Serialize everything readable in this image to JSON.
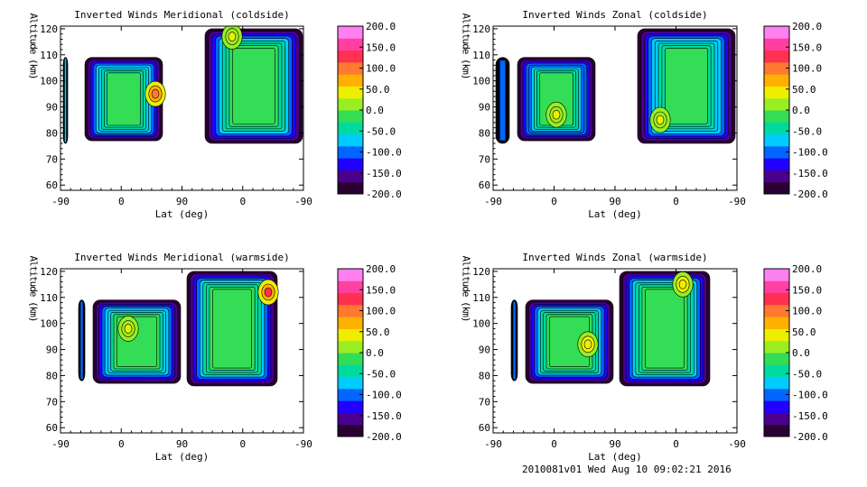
{
  "chart_data": [
    {
      "type": "heatmap",
      "title": "Inverted Winds Meridional (coldside)",
      "xlabel": "Lat (deg)",
      "ylabel": "Altitude (km)",
      "x_tick_labels": [
        "-90",
        "0",
        "90",
        "0",
        "-90"
      ],
      "y_tick_labels": [
        "60",
        "70",
        "80",
        "90",
        "100",
        "110",
        "120"
      ],
      "ylim": [
        58,
        121
      ],
      "colorbar_labels": [
        "200.0",
        "150.0",
        "100.0",
        "50.0",
        "0.0",
        "-50.0",
        "-100.0",
        "-150.0",
        "-200.0"
      ],
      "clim": [
        -200,
        200
      ],
      "regions": [
        {
          "x": [
            3,
            8
          ],
          "y": [
            76,
            109
          ],
          "edge": -200,
          "core": -70
        },
        {
          "x": [
            27,
            113
          ],
          "y": [
            77,
            109
          ],
          "edge": -200,
          "core": -5,
          "warm": {
            "x": 105,
            "y": 95,
            "v": 110
          }
        },
        {
          "x": [
            160,
            268
          ],
          "y": [
            76,
            120
          ],
          "edge": -200,
          "core": 5,
          "warm": {
            "x": 190,
            "y": 117,
            "v": 40
          }
        }
      ]
    },
    {
      "type": "heatmap",
      "title": "Inverted Winds Zonal (coldside)",
      "xlabel": "Lat (deg)",
      "ylabel": "Altitude (km)",
      "x_tick_labels": [
        "-90",
        "0",
        "90",
        "0",
        "-90"
      ],
      "y_tick_labels": [
        "60",
        "70",
        "80",
        "90",
        "100",
        "110",
        "120"
      ],
      "ylim": [
        58,
        121
      ],
      "colorbar_labels": [
        "200.0",
        "150.0",
        "100.0",
        "50.0",
        "0.0",
        "-50.0",
        "-100.0",
        "-150.0",
        "-200.0"
      ],
      "clim": [
        -200,
        200
      ],
      "regions": [
        {
          "x": [
            3,
            18
          ],
          "y": [
            76,
            109
          ],
          "edge": -200,
          "core": -80
        },
        {
          "x": [
            27,
            113
          ],
          "y": [
            77,
            109
          ],
          "edge": -200,
          "core": -15,
          "warm": {
            "x": 70,
            "y": 87,
            "v": 40
          }
        },
        {
          "x": [
            160,
            268
          ],
          "y": [
            76,
            120
          ],
          "edge": -200,
          "core": -10,
          "warm": {
            "x": 185,
            "y": 85,
            "v": 45
          }
        }
      ]
    },
    {
      "type": "heatmap",
      "title": "Inverted Winds Meridional (warmside)",
      "xlabel": "Lat (deg)",
      "ylabel": "Altitude (km)",
      "x_tick_labels": [
        "-90",
        "0",
        "90",
        "0",
        "-90"
      ],
      "y_tick_labels": [
        "60",
        "70",
        "80",
        "90",
        "100",
        "110",
        "120"
      ],
      "ylim": [
        58,
        121
      ],
      "colorbar_labels": [
        "200.0",
        "150.0",
        "100.0",
        "50.0",
        "0.0",
        "-50.0",
        "-100.0",
        "-150.0",
        "-200.0"
      ],
      "clim": [
        -200,
        200
      ],
      "regions": [
        {
          "x": [
            20,
            27
          ],
          "y": [
            78,
            109
          ],
          "edge": -200,
          "core": -90
        },
        {
          "x": [
            36,
            133
          ],
          "y": [
            77,
            109
          ],
          "edge": -200,
          "core": 0,
          "warm": {
            "x": 75,
            "y": 98,
            "v": 30
          }
        },
        {
          "x": [
            140,
            240
          ],
          "y": [
            76,
            120
          ],
          "edge": -200,
          "core": 5,
          "warm": {
            "x": 230,
            "y": 112,
            "v": 120
          }
        }
      ]
    },
    {
      "type": "heatmap",
      "title": "Inverted Winds Zonal (warmside)",
      "xlabel": "Lat (deg)",
      "ylabel": "Altitude (km)",
      "x_tick_labels": [
        "-90",
        "0",
        "90",
        "0",
        "-90"
      ],
      "y_tick_labels": [
        "60",
        "70",
        "80",
        "90",
        "100",
        "110",
        "120"
      ],
      "ylim": [
        58,
        121
      ],
      "colorbar_labels": [
        "200.0",
        "150.0",
        "100.0",
        "50.0",
        "0.0",
        "-50.0",
        "-100.0",
        "-150.0",
        "-200.0"
      ],
      "clim": [
        -200,
        200
      ],
      "regions": [
        {
          "x": [
            20,
            27
          ],
          "y": [
            78,
            109
          ],
          "edge": -200,
          "core": -90
        },
        {
          "x": [
            36,
            133
          ],
          "y": [
            77,
            109
          ],
          "edge": -200,
          "core": 10,
          "warm": {
            "x": 105,
            "y": 92,
            "v": 50
          }
        },
        {
          "x": [
            140,
            240
          ],
          "y": [
            76,
            120
          ],
          "edge": -200,
          "core": 5,
          "warm": {
            "x": 210,
            "y": 115,
            "v": 45
          }
        }
      ]
    }
  ],
  "footer": "2010081v01 Wed Aug 10 09:02:21 2016",
  "colormap": [
    "#2a0033",
    "#4a008c",
    "#2200ff",
    "#0066ff",
    "#00ccff",
    "#00d9a0",
    "#33dd55",
    "#99ee22",
    "#eeee00",
    "#ffb000",
    "#ff7a30",
    "#ff3050",
    "#ff40a0",
    "#ff80f0"
  ]
}
